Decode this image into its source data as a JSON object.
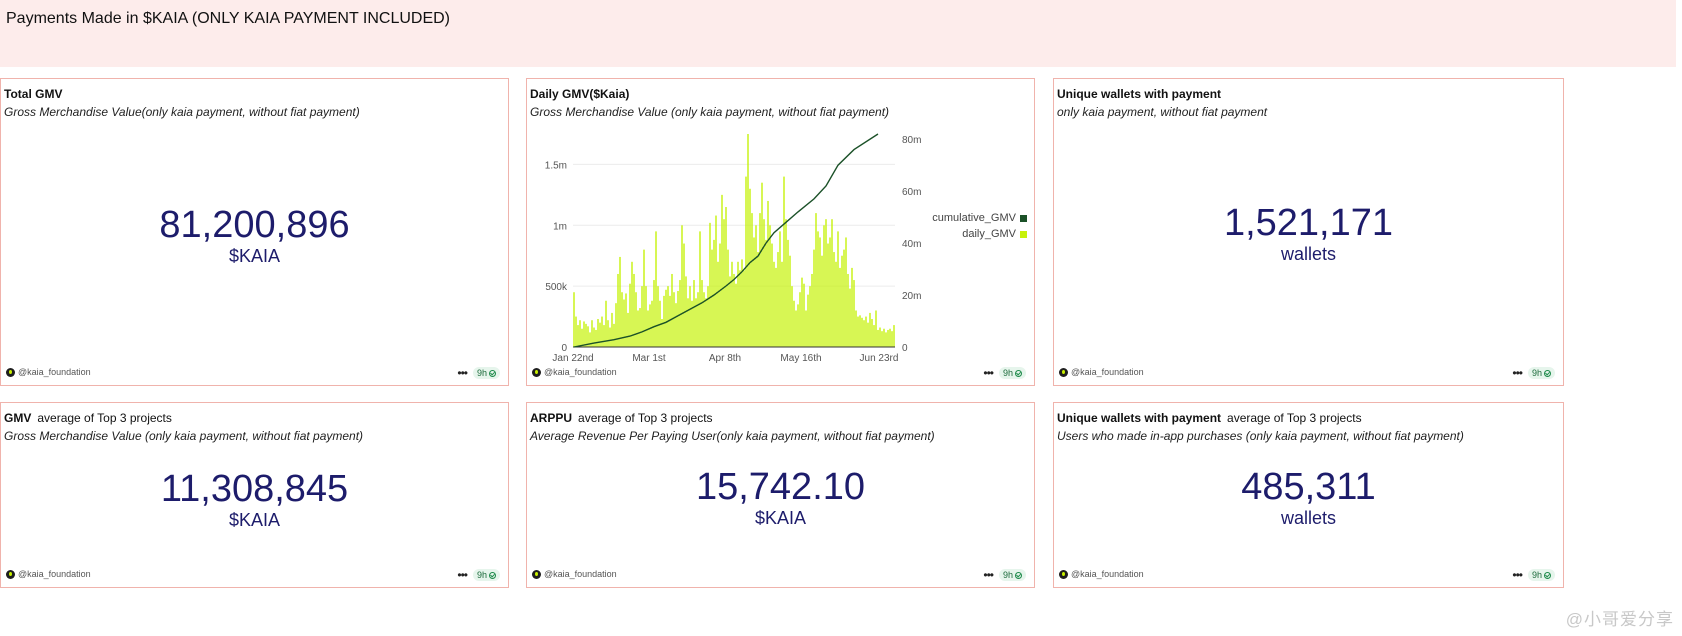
{
  "header": {
    "title": "Payments Made in $KAIA (ONLY KAIA PAYMENT INCLUDED)"
  },
  "footer": {
    "author": "@kaia_foundation",
    "age": "9h"
  },
  "cards": {
    "total_gmv": {
      "title": "Total GMV",
      "subtitle": "Gross Merchandise Value(only kaia payment, without fiat payment)",
      "value": "81,200,896",
      "unit": "$KAIA"
    },
    "daily_gmv": {
      "title": "Daily GMV($Kaia)",
      "subtitle": "Gross Merchandise Value (only kaia payment, without fiat payment)"
    },
    "unique_wallets": {
      "title": "Unique wallets with payment",
      "subtitle": "only kaia payment, without fiat payment",
      "value": "1,521,171",
      "unit": "wallets"
    },
    "gmv_top3": {
      "title": "GMV",
      "title_suffix": "average of Top 3 projects",
      "subtitle": "Gross Merchandise Value (only kaia payment, without fiat payment)",
      "value": "11,308,845",
      "unit": "$KAIA"
    },
    "arppu_top3": {
      "title": "ARPPU",
      "title_suffix": "average of Top 3 projects",
      "subtitle": "Average Revenue Per Paying User(only kaia payment, without fiat payment)",
      "value": "15,742.10",
      "unit": "$KAIA"
    },
    "wallets_top3": {
      "title": "Unique wallets with payment",
      "title_suffix": "average of Top 3 projects",
      "subtitle": "Users who made in-app purchases (only kaia payment, without fiat payment)",
      "value": "485,311",
      "unit": "wallets"
    }
  },
  "watermark": "@小哥爱分享",
  "chart_data": {
    "type": "bar",
    "x_tick_labels": [
      "Jan 22nd",
      "Mar 1st",
      "Apr 8th",
      "May 16th",
      "Jun 23rd"
    ],
    "x_tick_index": [
      0,
      38,
      76,
      114,
      152
    ],
    "left_axis": {
      "ticks": [
        0,
        500000,
        1000000,
        1500000
      ],
      "labels": [
        "0",
        "500k",
        "1m",
        "1.5m"
      ],
      "max": 1750000
    },
    "right_axis": {
      "ticks": [
        0,
        20000000,
        40000000,
        60000000,
        80000000
      ],
      "labels": [
        "0",
        "20m",
        "40m",
        "60m",
        "80m"
      ],
      "max": 82000000
    },
    "colors": {
      "daily_GMV": "#c6f20a",
      "cumulative_GMV": "#1b5128"
    },
    "legend": {
      "position": "right",
      "entries": [
        "cumulative_GMV",
        "daily_GMV"
      ]
    },
    "series": [
      {
        "name": "daily_GMV",
        "axis": "left",
        "type": "bar",
        "values": [
          450000,
          250000,
          180000,
          220000,
          150000,
          210000,
          190000,
          170000,
          120000,
          220000,
          160000,
          140000,
          230000,
          200000,
          250000,
          180000,
          380000,
          220000,
          160000,
          280000,
          190000,
          360000,
          600000,
          740000,
          450000,
          390000,
          440000,
          280000,
          520000,
          700000,
          600000,
          450000,
          300000,
          320000,
          500000,
          800000,
          500000,
          300000,
          350000,
          380000,
          550000,
          950000,
          500000,
          380000,
          230000,
          420000,
          470000,
          500000,
          420000,
          600000,
          450000,
          360000,
          460000,
          550000,
          1000000,
          850000,
          580000,
          400000,
          500000,
          380000,
          550000,
          400000,
          450000,
          950000,
          550000,
          450000,
          400000,
          500000,
          1020000,
          800000,
          880000,
          1080000,
          700000,
          850000,
          1250000,
          1050000,
          1150000,
          800000,
          580000,
          700000,
          600000,
          520000,
          700000,
          630000,
          720000,
          630000,
          1400000,
          1750000,
          1300000,
          1100000,
          900000,
          1000000,
          780000,
          1100000,
          1350000,
          1050000,
          880000,
          1200000,
          1000000,
          850000,
          700000,
          650000,
          780000,
          950000,
          700000,
          1400000,
          1050000,
          880000,
          750000,
          500000,
          380000,
          300000,
          350000,
          450000,
          570000,
          520000,
          300000,
          430000,
          500000,
          600000,
          800000,
          1100000,
          950000,
          900000,
          750000,
          1000000,
          1050000,
          850000,
          900000,
          1050000,
          780000,
          700000,
          950000,
          650000,
          750000,
          800000,
          900000,
          600000,
          480000,
          650000,
          550000,
          300000,
          250000,
          260000,
          240000,
          220000,
          250000,
          200000,
          280000,
          230000,
          180000,
          300000,
          140000,
          160000,
          130000,
          150000,
          120000,
          140000,
          150000,
          130000,
          180000
        ]
      },
      {
        "name": "cumulative_GMV",
        "axis": "right",
        "type": "line",
        "x": [
          0,
          10,
          20,
          28,
          34,
          40,
          46,
          52,
          58,
          64,
          70,
          76,
          80,
          84,
          88,
          92,
          96,
          100,
          106,
          112,
          120,
          126,
          132,
          140,
          152
        ],
        "values": [
          0,
          1500000,
          2800000,
          4200000,
          5800000,
          7800000,
          9500000,
          12000000,
          14500000,
          17000000,
          20000000,
          23500000,
          26000000,
          29000000,
          32500000,
          35000000,
          40000000,
          44000000,
          48000000,
          52000000,
          57000000,
          62000000,
          70000000,
          76000000,
          82000000
        ]
      }
    ]
  }
}
